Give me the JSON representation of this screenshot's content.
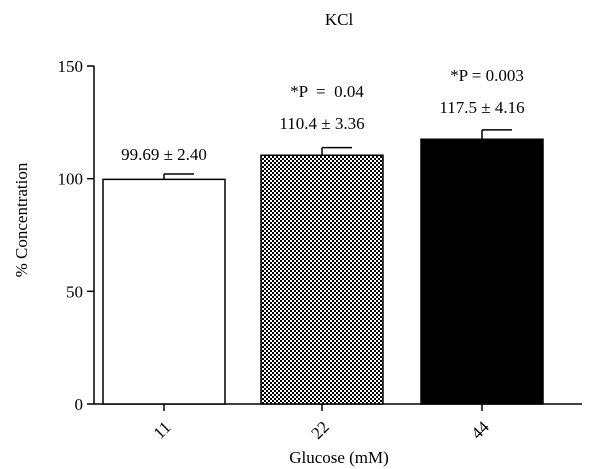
{
  "chart_data": {
    "type": "bar",
    "title": "KCl",
    "xlabel": "Glucose (mM)",
    "ylabel": "% Concentration",
    "ylim": [
      0,
      150
    ],
    "yticks": [
      "0",
      "50",
      "100",
      "150"
    ],
    "categories": [
      "11",
      "22",
      "44"
    ],
    "values": [
      99.69,
      110.4,
      117.5
    ],
    "errors": [
      2.4,
      3.36,
      4.16
    ],
    "bar_styles": [
      "white",
      "checker",
      "black"
    ],
    "value_labels": [
      "99.69 ± 2.40",
      "110.4 ± 3.36",
      "117.5 ± 4.16"
    ],
    "p_labels": [
      "",
      "*P  =  0.04",
      "*P = 0.003"
    ],
    "grid": false,
    "legend": "none"
  }
}
